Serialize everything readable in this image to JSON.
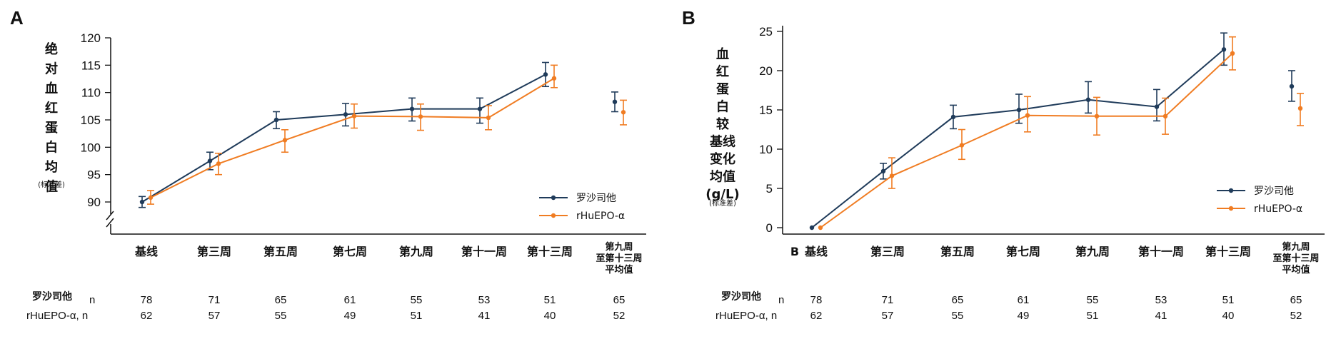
{
  "panels": [
    {
      "label": "A",
      "ylabel_chars": [
        "绝",
        "对",
        "血",
        "红",
        "蛋",
        "白",
        "均",
        "值"
      ],
      "ylabel_note": "(标准差)",
      "first_category_prefix": "",
      "legend": [
        "罗沙司他",
        "rHuEPO-α"
      ],
      "n_row_labels": [
        "罗沙司他",
        "n",
        "rHuEPO-α, n"
      ]
    },
    {
      "label": "B",
      "ylabel_chars": [
        "血",
        "红",
        "蛋",
        "白",
        "较",
        "基线",
        "变化",
        "均值",
        "(g/L)"
      ],
      "ylabel_note": "(标准差)",
      "first_category_prefix": "B",
      "legend": [
        "罗沙司他",
        "rHuEPO-α"
      ],
      "n_row_labels": [
        "罗沙司他",
        "n",
        "rHuEPO-α, n"
      ]
    }
  ],
  "colors": {
    "roxadustat": "#1f3b5a",
    "rhuepo": "#f07c22"
  },
  "chart_data": [
    {
      "type": "line",
      "title": "",
      "panel": "A",
      "categories": [
        "基线",
        "第三周",
        "第五周",
        "第七周",
        "第九周",
        "第十一周",
        "第十三周",
        "第九周\n至第十三周\n平均值"
      ],
      "ylabel": "绝对血红蛋白均值(标准差)",
      "ylim": [
        88,
        120
      ],
      "yticks": [
        90,
        95,
        100,
        105,
        110,
        115,
        120
      ],
      "axis_break": true,
      "series": [
        {
          "name": "罗沙司他",
          "values": [
            90.0,
            97.5,
            105.0,
            106.0,
            107.0,
            107.0,
            113.3,
            108.3
          ],
          "err_low": [
            89.0,
            95.9,
            103.4,
            103.9,
            104.8,
            104.4,
            111.1,
            106.5
          ],
          "err_high": [
            91.0,
            99.1,
            106.5,
            108.0,
            109.0,
            109.0,
            115.5,
            110.1
          ]
        },
        {
          "name": "rHuEPO-α",
          "values": [
            90.8,
            97.0,
            101.3,
            105.7,
            105.6,
            105.4,
            112.6,
            106.4
          ],
          "err_low": [
            89.6,
            95.0,
            99.1,
            103.5,
            103.1,
            103.2,
            110.9,
            104.1
          ],
          "err_high": [
            92.1,
            98.9,
            103.2,
            107.9,
            107.9,
            107.6,
            115.0,
            108.6
          ]
        }
      ],
      "n_table": {
        "roxadustat": [
          78,
          71,
          65,
          61,
          55,
          53,
          51,
          65
        ],
        "rhuepo": [
          62,
          57,
          55,
          49,
          51,
          41,
          40,
          52
        ]
      },
      "legend_position": "bottom-right"
    },
    {
      "type": "line",
      "title": "",
      "panel": "B",
      "categories": [
        "基线",
        "第三周",
        "第五周",
        "第七周",
        "第九周",
        "第十一周",
        "第十三周",
        "第九周\n至第十三周\n平均值"
      ],
      "ylabel": "血红蛋白较基线变化均值(g/L)(标准差)",
      "ylim": [
        0,
        25
      ],
      "yticks": [
        0,
        5,
        10,
        15,
        20,
        25
      ],
      "series": [
        {
          "name": "罗沙司他",
          "values": [
            0,
            7.2,
            14.1,
            15.0,
            16.3,
            15.4,
            22.7,
            18.0
          ],
          "err_low": [
            null,
            6.2,
            12.6,
            13.3,
            14.6,
            13.6,
            20.7,
            16.1
          ],
          "err_high": [
            null,
            8.2,
            15.6,
            17.0,
            18.6,
            17.6,
            24.8,
            20.0
          ]
        },
        {
          "name": "rHuEPO-α",
          "values": [
            0,
            6.6,
            10.5,
            14.3,
            14.2,
            14.2,
            22.2,
            15.2
          ],
          "err_low": [
            null,
            5.0,
            8.7,
            12.2,
            11.8,
            11.9,
            20.1,
            13.0
          ],
          "err_high": [
            null,
            8.9,
            12.5,
            16.7,
            16.6,
            16.5,
            24.3,
            17.1
          ]
        }
      ],
      "n_table": {
        "roxadustat": [
          78,
          71,
          65,
          61,
          55,
          53,
          51,
          65
        ],
        "rhuepo": [
          62,
          57,
          55,
          49,
          51,
          41,
          40,
          52
        ]
      },
      "legend_position": "bottom-right"
    }
  ]
}
